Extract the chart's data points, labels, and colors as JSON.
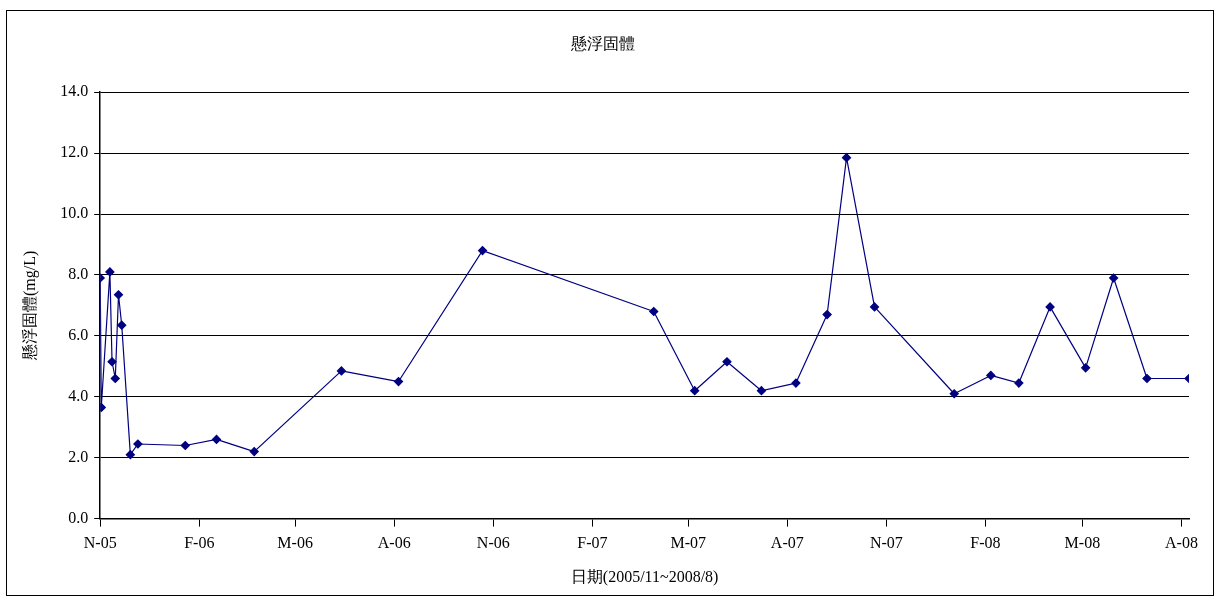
{
  "chart_data": {
    "type": "line",
    "title": "懸浮固體",
    "xlabel": "日期(2005/11~2008/8)",
    "ylabel": "懸浮固體(mg/L)",
    "xlim": [
      "2005-11-01",
      "2008-08-08"
    ],
    "xticks": [
      {
        "value": "2005-11-01",
        "label": "N-05"
      },
      {
        "value": "2006-02-01",
        "label": "F-06"
      },
      {
        "value": "2006-05-01",
        "label": "M-06"
      },
      {
        "value": "2006-08-01",
        "label": "A-06"
      },
      {
        "value": "2006-11-01",
        "label": "N-06"
      },
      {
        "value": "2007-02-01",
        "label": "F-07"
      },
      {
        "value": "2007-05-01",
        "label": "M-07"
      },
      {
        "value": "2007-08-01",
        "label": "A-07"
      },
      {
        "value": "2007-11-01",
        "label": "N-07"
      },
      {
        "value": "2008-02-01",
        "label": "F-08"
      },
      {
        "value": "2008-05-01",
        "label": "M-08"
      },
      {
        "value": "2008-08-01",
        "label": "A-08"
      }
    ],
    "ylim": [
      0,
      14
    ],
    "yticks": [
      {
        "value": 0,
        "label": "0.0"
      },
      {
        "value": 2,
        "label": "2.0"
      },
      {
        "value": 4,
        "label": "4.0"
      },
      {
        "value": 6,
        "label": "6.0"
      },
      {
        "value": 8,
        "label": "8.0"
      },
      {
        "value": 10,
        "label": "10.0"
      },
      {
        "value": 12,
        "label": "12.0"
      },
      {
        "value": 14,
        "label": "14.0"
      }
    ],
    "grid": "y",
    "legend": false,
    "marker": "diamond",
    "line_style": "solid",
    "x": [
      "2005-11-01",
      "2005-11-02",
      "2005-11-10",
      "2005-11-12",
      "2005-11-15",
      "2005-11-18",
      "2005-11-21",
      "2005-11-29",
      "2005-12-06",
      "2006-01-19",
      "2006-02-17",
      "2006-03-24",
      "2006-06-13",
      "2006-08-05",
      "2006-10-22",
      "2007-03-30",
      "2007-05-07",
      "2007-06-06",
      "2007-07-08",
      "2007-08-09",
      "2007-09-07",
      "2007-09-25",
      "2007-10-21",
      "2008-01-03",
      "2008-02-06",
      "2008-03-03",
      "2008-04-01",
      "2008-05-04",
      "2008-05-30",
      "2008-06-30",
      "2008-08-08"
    ],
    "series": [
      {
        "color": "#000080",
        "values": [
          7.9,
          3.65,
          8.1,
          5.15,
          4.6,
          7.35,
          6.35,
          2.1,
          2.45,
          2.4,
          2.6,
          2.2,
          4.85,
          4.5,
          8.8,
          6.8,
          4.2,
          5.15,
          4.2,
          4.45,
          6.7,
          11.85,
          6.95,
          4.1,
          4.7,
          4.45,
          6.95,
          4.95,
          7.9,
          4.6,
          4.6
        ]
      }
    ]
  }
}
